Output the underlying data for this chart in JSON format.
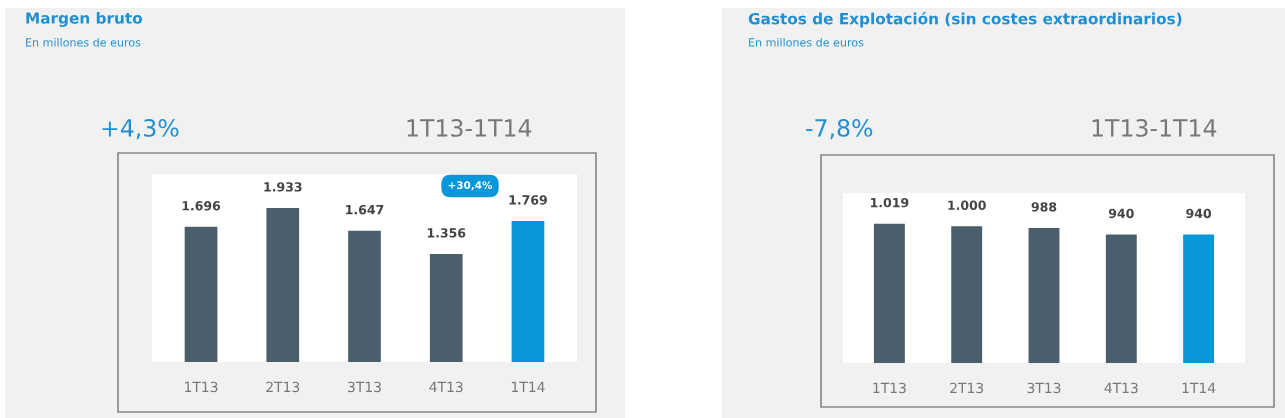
{
  "chart_data": [
    {
      "type": "bar",
      "title": "Margen bruto",
      "subtitle": "En millones de euros",
      "categories": [
        "1T13",
        "2T13",
        "3T13",
        "4T13",
        "1T14"
      ],
      "values": [
        1696,
        1933,
        1647,
        1356,
        1769
      ],
      "value_labels": [
        "1.696",
        "1.933",
        "1.647",
        "1.356",
        "1.769"
      ],
      "colors": [
        "#4a5f6b",
        "#4a5f6b",
        "#4a5f6b",
        "#4a5f6b",
        "#0a97d9"
      ],
      "annotations": [
        "+4,3%",
        "1T13-1T14",
        "+30,4%"
      ]
    },
    {
      "type": "bar",
      "title": "Gastos de Explotación (sin costes extraordinarios)",
      "subtitle": "En millones de euros",
      "categories": [
        "1T13",
        "2T13",
        "3T13",
        "4T13",
        "1T14"
      ],
      "values": [
        1019,
        1000,
        988,
        940,
        940
      ],
      "value_labels": [
        "1.019",
        "1.000",
        "988",
        "940",
        "940"
      ],
      "colors": [
        "#4a5f6b",
        "#4a5f6b",
        "#4a5f6b",
        "#4a5f6b",
        "#0a97d9"
      ],
      "annotations": [
        "-7,8%",
        "1T13-1T14"
      ]
    }
  ]
}
